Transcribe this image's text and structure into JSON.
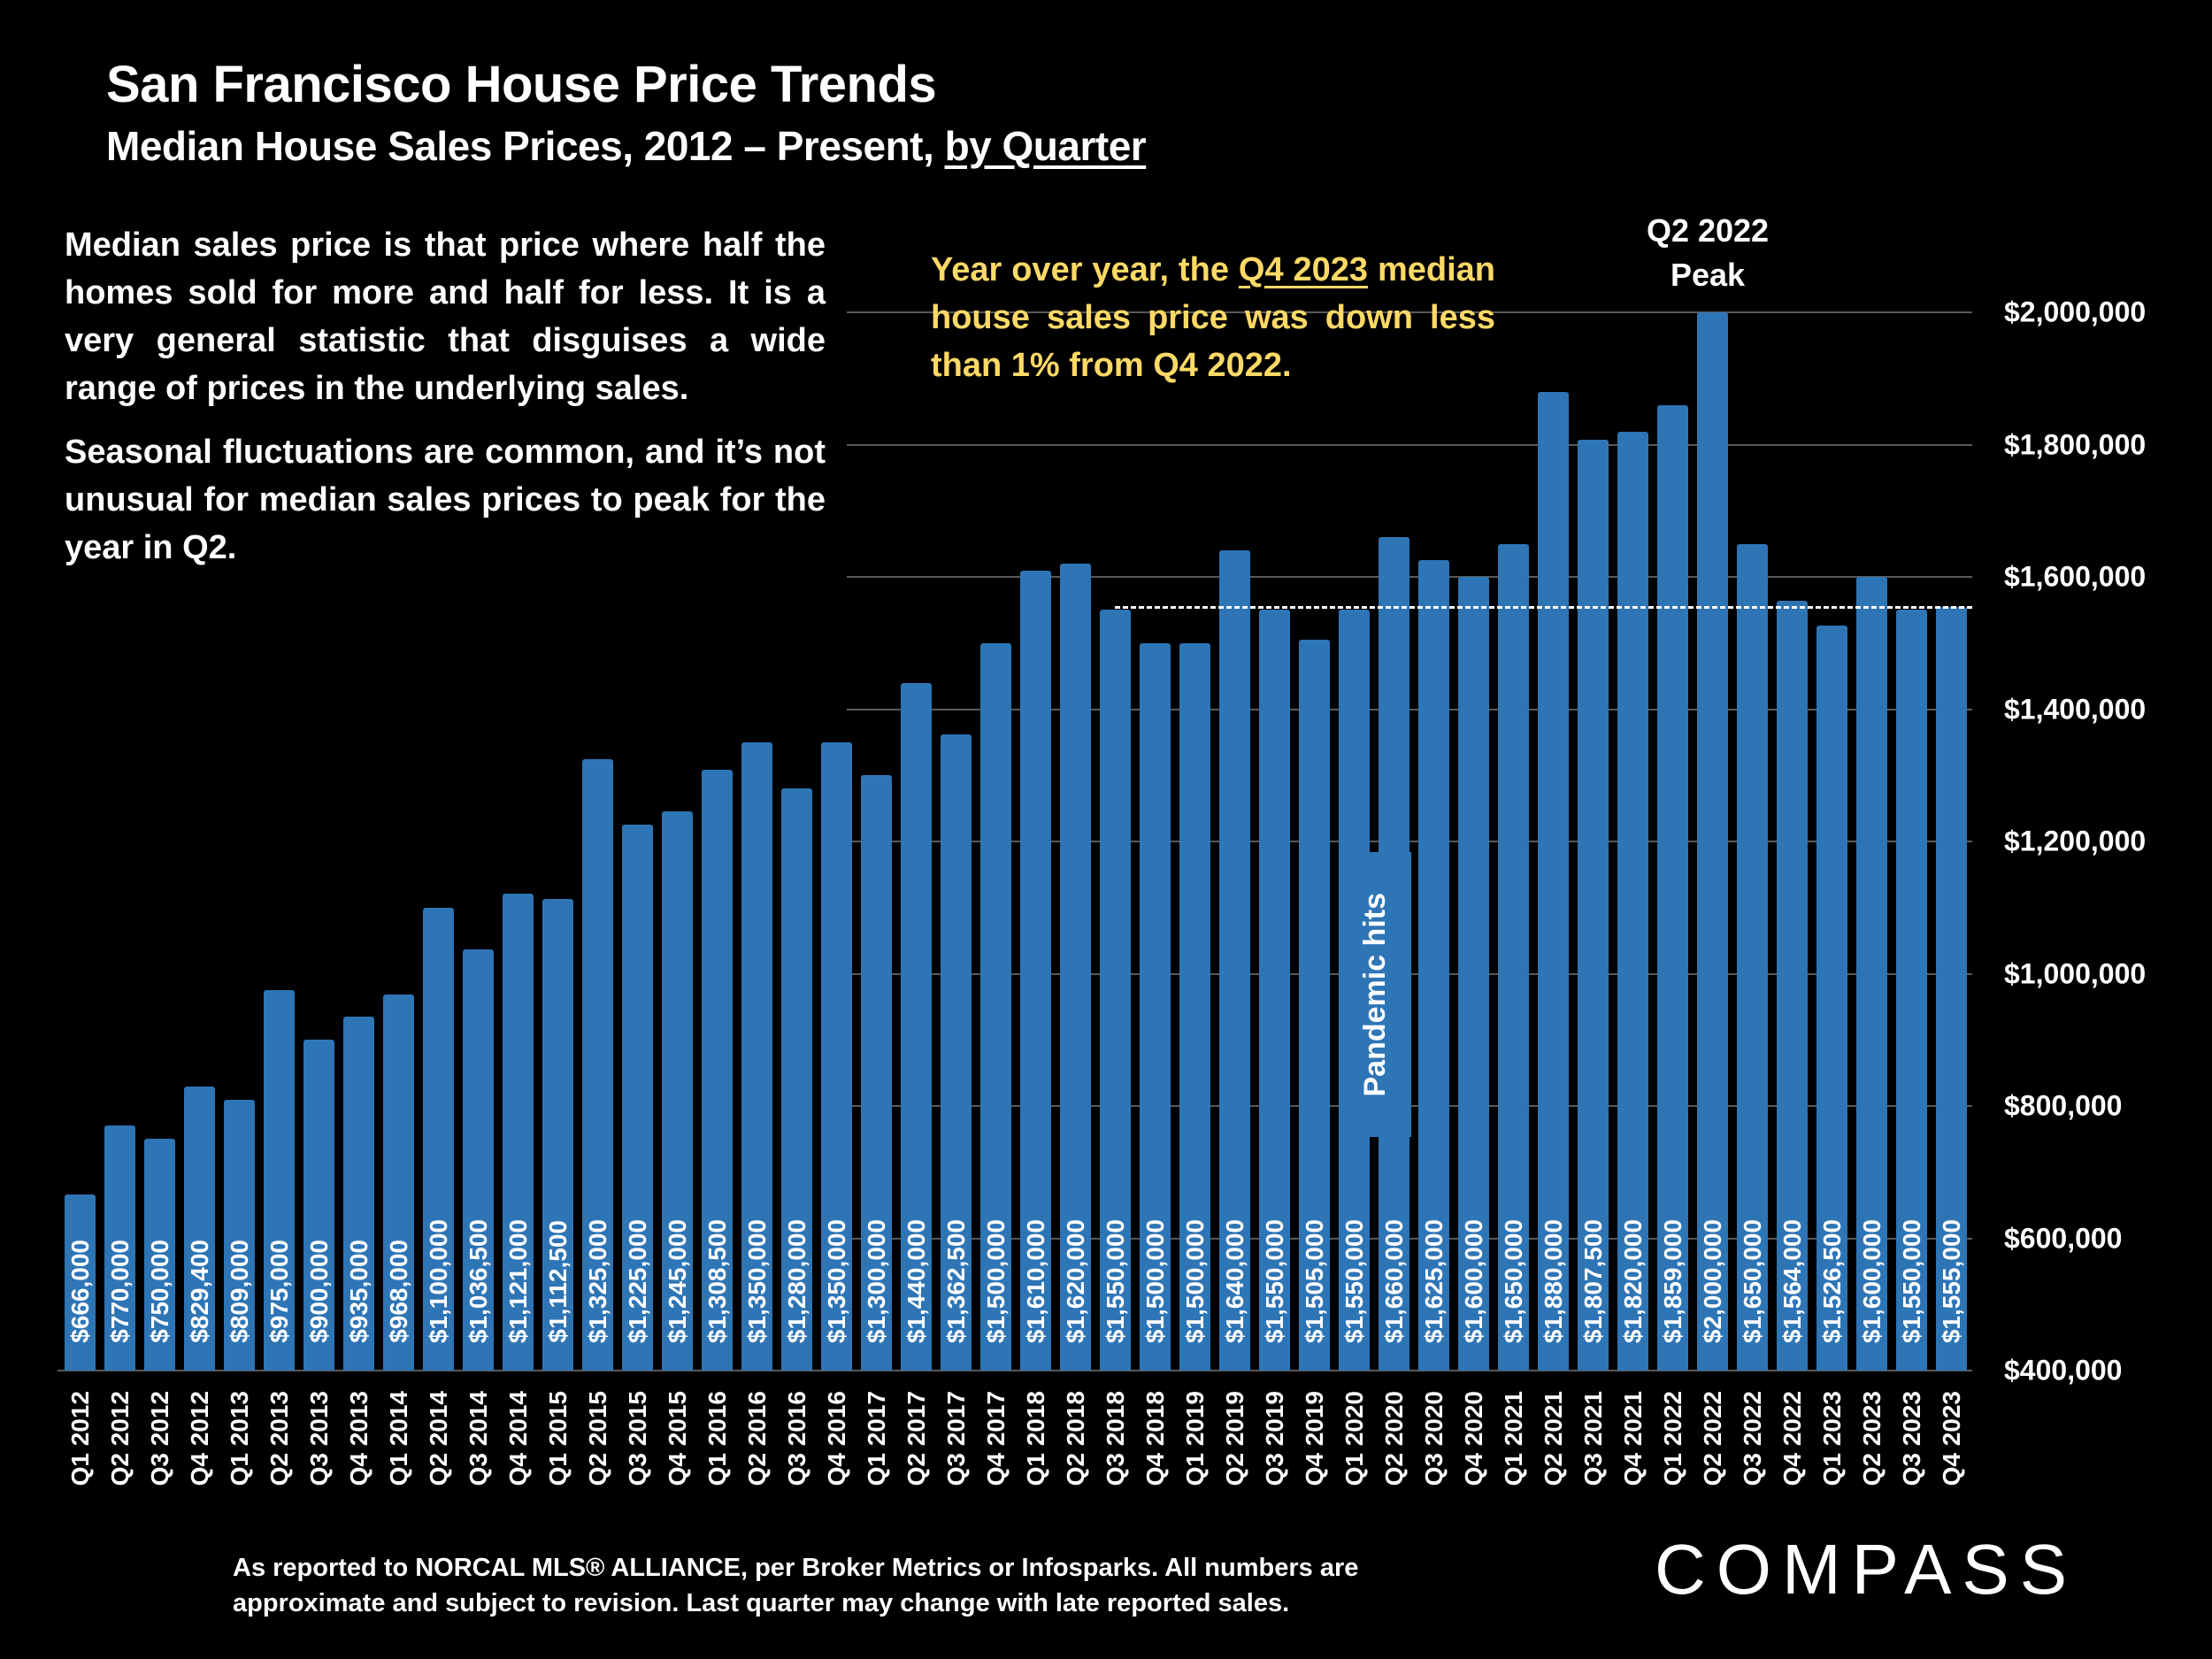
{
  "header": {
    "title": "San Francisco House Price Trends",
    "subtitle_main": "Median House Sales Prices, 2012 – Present, ",
    "subtitle_link": "by Quarter"
  },
  "notes": [
    "Median sales price is that price where half the homes sold for more and half for less. It is a very general statistic that disguises a wide range of prices in the underlying sales.",
    "Seasonal fluctuations are common, and it’s not unusual for median sales prices to peak for the year in Q2."
  ],
  "yoy": {
    "before": "Year over year, the ",
    "highlight": "Q4 2023",
    "after": " median house sales price was down less than 1% from Q4 2022."
  },
  "annotations": {
    "peak_line1": "Q2 2022",
    "peak_line2": "Peak",
    "pandemic": "Pandemic hits"
  },
  "footnote": "As reported to NORCAL MLS® ALLIANCE, per Broker Metrics or Infosparks. All numbers are approximate and subject to revision. Last quarter may change with late reported sales.",
  "logo": "COMPASS",
  "colors": {
    "bar": "#2e75b6",
    "highlight_text": "#ffd966",
    "background": "#000000"
  },
  "chart_data": {
    "type": "bar",
    "title": "San Francisco House Price Trends",
    "xlabel": "",
    "ylabel": "Median House Sales Price",
    "ylim": [
      400000,
      2000000
    ],
    "yticks": [
      400000,
      600000,
      800000,
      1000000,
      1200000,
      1400000,
      1600000,
      1800000,
      2000000
    ],
    "ytick_labels": [
      "$400,000",
      "$600,000",
      "$800,000",
      "$1,000,000",
      "$1,200,000",
      "$1,400,000",
      "$1,600,000",
      "$1,800,000",
      "$2,000,000"
    ],
    "grid": true,
    "reference_line": 1555000,
    "categories": [
      "Q1 2012",
      "Q2 2012",
      "Q3 2012",
      "Q4 2012",
      "Q1 2013",
      "Q2 2013",
      "Q3 2013",
      "Q4 2013",
      "Q1 2014",
      "Q2 2014",
      "Q3 2014",
      "Q4 2014",
      "Q1 2015",
      "Q2 2015",
      "Q3 2015",
      "Q4 2015",
      "Q1 2016",
      "Q2 2016",
      "Q3 2016",
      "Q4 2016",
      "Q1 2017",
      "Q2 2017",
      "Q3 2017",
      "Q4 2017",
      "Q1 2018",
      "Q2 2018",
      "Q3 2018",
      "Q4 2018",
      "Q1 2019",
      "Q2 2019",
      "Q3 2019",
      "Q4 2019",
      "Q1 2020",
      "Q2 2020",
      "Q3 2020",
      "Q4 2020",
      "Q1 2021",
      "Q2 2021",
      "Q3 2021",
      "Q4 2021",
      "Q1 2022",
      "Q2 2022",
      "Q3 2022",
      "Q4 2022",
      "Q1 2023",
      "Q2 2023",
      "Q3 2023",
      "Q4 2023"
    ],
    "values": [
      666000,
      770000,
      750000,
      829400,
      809000,
      975000,
      900000,
      935000,
      968000,
      1100000,
      1036500,
      1121000,
      1112500,
      1325000,
      1225000,
      1245000,
      1308500,
      1350000,
      1280000,
      1350000,
      1300000,
      1440000,
      1362500,
      1500000,
      1610000,
      1620000,
      1550000,
      1500000,
      1500000,
      1640000,
      1550000,
      1505000,
      1550000,
      1660000,
      1625000,
      1600000,
      1650000,
      1880000,
      1807500,
      1820000,
      1859000,
      2000000,
      1650000,
      1564000,
      1526500,
      1600000,
      1550000,
      1555000
    ],
    "value_labels": [
      "$666,000",
      "$770,000",
      "$750,000",
      "$829,400",
      "$809,000",
      "$975,000",
      "$900,000",
      "$935,000",
      "$968,000",
      "$1,100,000",
      "$1,036,500",
      "$1,121,000",
      "$1,112,500",
      "$1,325,000",
      "$1,225,000",
      "$1,245,000",
      "$1,308,500",
      "$1,350,000",
      "$1,280,000",
      "$1,350,000",
      "$1,300,000",
      "$1,440,000",
      "$1,362,500",
      "$1,500,000",
      "$1,610,000",
      "$1,620,000",
      "$1,550,000",
      "$1,500,000",
      "$1,500,000",
      "$1,640,000",
      "$1,550,000",
      "$1,505,000",
      "$1,550,000",
      "$1,660,000",
      "$1,625,000",
      "$1,600,000",
      "$1,650,000",
      "$1,880,000",
      "$1,807,500",
      "$1,820,000",
      "$1,859,000",
      "$2,000,000",
      "$1,650,000",
      "$1,564,000",
      "$1,526,500",
      "$1,600,000",
      "$1,550,000",
      "$1,555,000"
    ]
  }
}
